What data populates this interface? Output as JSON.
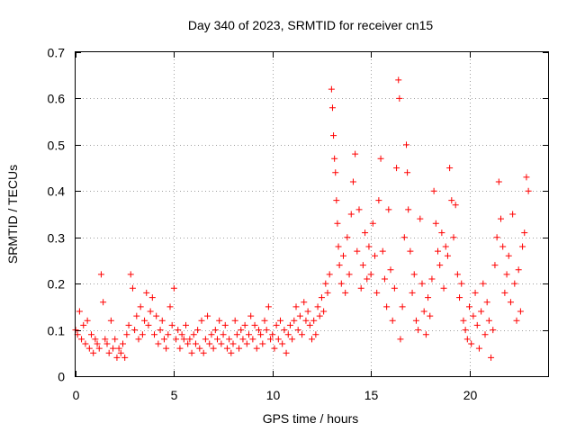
{
  "chart_data": {
    "type": "scatter",
    "title": "Day 340 of 2023, SRMTID for receiver cn15",
    "xlabel": "GPS time / hours",
    "ylabel": "SRMTID / TECUs",
    "xlim": [
      0,
      24
    ],
    "ylim": [
      0,
      0.7
    ],
    "x_ticks": [
      "0",
      "5",
      "10",
      "15",
      "20"
    ],
    "x_tick_values": [
      0,
      5,
      10,
      15,
      20
    ],
    "y_ticks": [
      "0",
      "0.1",
      "0.2",
      "0.3",
      "0.4",
      "0.5",
      "0.6",
      "0.7"
    ],
    "y_tick_values": [
      0,
      0.1,
      0.2,
      0.3,
      0.4,
      0.5,
      0.6,
      0.7
    ],
    "grid": true,
    "marker": "+",
    "color": "#ff0000",
    "series": [
      {
        "name": "SRMTID",
        "points": [
          [
            0.0,
            0.1
          ],
          [
            0.1,
            0.09
          ],
          [
            0.2,
            0.14
          ],
          [
            0.3,
            0.08
          ],
          [
            0.4,
            0.11
          ],
          [
            0.5,
            0.07
          ],
          [
            0.6,
            0.12
          ],
          [
            0.7,
            0.06
          ],
          [
            0.8,
            0.09
          ],
          [
            0.9,
            0.05
          ],
          [
            1.0,
            0.08
          ],
          [
            1.1,
            0.07
          ],
          [
            1.2,
            0.06
          ],
          [
            1.3,
            0.22
          ],
          [
            1.4,
            0.16
          ],
          [
            1.5,
            0.08
          ],
          [
            1.6,
            0.07
          ],
          [
            1.7,
            0.05
          ],
          [
            1.8,
            0.12
          ],
          [
            1.9,
            0.06
          ],
          [
            2.0,
            0.08
          ],
          [
            2.1,
            0.04
          ],
          [
            2.2,
            0.06
          ],
          [
            2.3,
            0.05
          ],
          [
            2.4,
            0.07
          ],
          [
            2.5,
            0.04
          ],
          [
            2.6,
            0.09
          ],
          [
            2.7,
            0.11
          ],
          [
            2.8,
            0.22
          ],
          [
            2.9,
            0.19
          ],
          [
            3.0,
            0.1
          ],
          [
            3.1,
            0.13
          ],
          [
            3.2,
            0.08
          ],
          [
            3.3,
            0.15
          ],
          [
            3.4,
            0.09
          ],
          [
            3.5,
            0.12
          ],
          [
            3.6,
            0.18
          ],
          [
            3.7,
            0.11
          ],
          [
            3.8,
            0.14
          ],
          [
            3.9,
            0.17
          ],
          [
            4.0,
            0.09
          ],
          [
            4.1,
            0.13
          ],
          [
            4.2,
            0.07
          ],
          [
            4.3,
            0.1
          ],
          [
            4.4,
            0.12
          ],
          [
            4.5,
            0.08
          ],
          [
            4.6,
            0.06
          ],
          [
            4.7,
            0.09
          ],
          [
            4.8,
            0.15
          ],
          [
            4.9,
            0.11
          ],
          [
            5.0,
            0.19
          ],
          [
            5.1,
            0.08
          ],
          [
            5.2,
            0.1
          ],
          [
            5.3,
            0.06
          ],
          [
            5.4,
            0.09
          ],
          [
            5.5,
            0.08
          ],
          [
            5.6,
            0.11
          ],
          [
            5.7,
            0.07
          ],
          [
            5.8,
            0.08
          ],
          [
            5.9,
            0.05
          ],
          [
            6.0,
            0.09
          ],
          [
            6.1,
            0.07
          ],
          [
            6.2,
            0.1
          ],
          [
            6.3,
            0.06
          ],
          [
            6.4,
            0.12
          ],
          [
            6.5,
            0.05
          ],
          [
            6.6,
            0.08
          ],
          [
            6.7,
            0.13
          ],
          [
            6.8,
            0.07
          ],
          [
            6.9,
            0.09
          ],
          [
            7.0,
            0.06
          ],
          [
            7.1,
            0.1
          ],
          [
            7.2,
            0.08
          ],
          [
            7.3,
            0.12
          ],
          [
            7.4,
            0.07
          ],
          [
            7.5,
            0.09
          ],
          [
            7.6,
            0.11
          ],
          [
            7.7,
            0.06
          ],
          [
            7.8,
            0.08
          ],
          [
            7.9,
            0.05
          ],
          [
            8.0,
            0.07
          ],
          [
            8.1,
            0.12
          ],
          [
            8.2,
            0.09
          ],
          [
            8.3,
            0.06
          ],
          [
            8.4,
            0.1
          ],
          [
            8.5,
            0.08
          ],
          [
            8.6,
            0.11
          ],
          [
            8.7,
            0.07
          ],
          [
            8.8,
            0.09
          ],
          [
            8.9,
            0.13
          ],
          [
            9.0,
            0.08
          ],
          [
            9.1,
            0.11
          ],
          [
            9.2,
            0.06
          ],
          [
            9.3,
            0.1
          ],
          [
            9.4,
            0.09
          ],
          [
            9.5,
            0.07
          ],
          [
            9.6,
            0.12
          ],
          [
            9.7,
            0.1
          ],
          [
            9.8,
            0.15
          ],
          [
            9.9,
            0.08
          ],
          [
            10.0,
            0.09
          ],
          [
            10.1,
            0.06
          ],
          [
            10.2,
            0.11
          ],
          [
            10.3,
            0.08
          ],
          [
            10.4,
            0.12
          ],
          [
            10.5,
            0.07
          ],
          [
            10.6,
            0.1
          ],
          [
            10.7,
            0.05
          ],
          [
            10.8,
            0.09
          ],
          [
            10.9,
            0.11
          ],
          [
            11.0,
            0.08
          ],
          [
            11.1,
            0.12
          ],
          [
            11.2,
            0.15
          ],
          [
            11.3,
            0.1
          ],
          [
            11.4,
            0.13
          ],
          [
            11.5,
            0.09
          ],
          [
            11.6,
            0.16
          ],
          [
            11.7,
            0.12
          ],
          [
            11.8,
            0.14
          ],
          [
            11.9,
            0.11
          ],
          [
            12.0,
            0.08
          ],
          [
            12.1,
            0.12
          ],
          [
            12.2,
            0.09
          ],
          [
            12.3,
            0.15
          ],
          [
            12.4,
            0.13
          ],
          [
            12.5,
            0.17
          ],
          [
            12.6,
            0.14
          ],
          [
            12.7,
            0.2
          ],
          [
            12.8,
            0.18
          ],
          [
            12.9,
            0.22
          ],
          [
            13.0,
            0.62
          ],
          [
            13.05,
            0.58
          ],
          [
            13.1,
            0.52
          ],
          [
            13.15,
            0.47
          ],
          [
            13.2,
            0.44
          ],
          [
            13.25,
            0.38
          ],
          [
            13.3,
            0.33
          ],
          [
            13.35,
            0.28
          ],
          [
            13.4,
            0.24
          ],
          [
            13.5,
            0.2
          ],
          [
            13.6,
            0.26
          ],
          [
            13.7,
            0.18
          ],
          [
            13.8,
            0.3
          ],
          [
            13.9,
            0.22
          ],
          [
            14.0,
            0.35
          ],
          [
            14.1,
            0.42
          ],
          [
            14.2,
            0.48
          ],
          [
            14.3,
            0.27
          ],
          [
            14.4,
            0.36
          ],
          [
            14.5,
            0.19
          ],
          [
            14.6,
            0.24
          ],
          [
            14.7,
            0.31
          ],
          [
            14.8,
            0.21
          ],
          [
            14.9,
            0.28
          ],
          [
            15.0,
            0.22
          ],
          [
            15.1,
            0.33
          ],
          [
            15.2,
            0.26
          ],
          [
            15.3,
            0.18
          ],
          [
            15.4,
            0.38
          ],
          [
            15.5,
            0.47
          ],
          [
            15.6,
            0.27
          ],
          [
            15.7,
            0.21
          ],
          [
            15.8,
            0.15
          ],
          [
            15.9,
            0.36
          ],
          [
            16.0,
            0.23
          ],
          [
            16.1,
            0.12
          ],
          [
            16.2,
            0.19
          ],
          [
            16.3,
            0.45
          ],
          [
            16.4,
            0.64
          ],
          [
            16.45,
            0.6
          ],
          [
            16.5,
            0.08
          ],
          [
            16.6,
            0.15
          ],
          [
            16.7,
            0.3
          ],
          [
            16.8,
            0.5
          ],
          [
            16.85,
            0.44
          ],
          [
            16.9,
            0.36
          ],
          [
            17.0,
            0.27
          ],
          [
            17.1,
            0.18
          ],
          [
            17.2,
            0.22
          ],
          [
            17.3,
            0.12
          ],
          [
            17.4,
            0.1
          ],
          [
            17.5,
            0.34
          ],
          [
            17.6,
            0.2
          ],
          [
            17.7,
            0.14
          ],
          [
            17.8,
            0.09
          ],
          [
            17.9,
            0.17
          ],
          [
            18.0,
            0.13
          ],
          [
            18.1,
            0.21
          ],
          [
            18.2,
            0.4
          ],
          [
            18.3,
            0.33
          ],
          [
            18.4,
            0.27
          ],
          [
            18.5,
            0.24
          ],
          [
            18.6,
            0.31
          ],
          [
            18.7,
            0.19
          ],
          [
            18.8,
            0.28
          ],
          [
            18.9,
            0.26
          ],
          [
            19.0,
            0.45
          ],
          [
            19.1,
            0.38
          ],
          [
            19.2,
            0.3
          ],
          [
            19.3,
            0.37
          ],
          [
            19.4,
            0.22
          ],
          [
            19.5,
            0.17
          ],
          [
            19.6,
            0.2
          ],
          [
            19.7,
            0.12
          ],
          [
            19.8,
            0.1
          ],
          [
            19.9,
            0.08
          ],
          [
            20.0,
            0.15
          ],
          [
            20.1,
            0.07
          ],
          [
            20.2,
            0.13
          ],
          [
            20.3,
            0.18
          ],
          [
            20.4,
            0.11
          ],
          [
            20.5,
            0.06
          ],
          [
            20.6,
            0.14
          ],
          [
            20.7,
            0.2
          ],
          [
            20.8,
            0.09
          ],
          [
            20.9,
            0.16
          ],
          [
            21.0,
            0.12
          ],
          [
            21.1,
            0.04
          ],
          [
            21.2,
            0.1
          ],
          [
            21.3,
            0.24
          ],
          [
            21.4,
            0.3
          ],
          [
            21.5,
            0.42
          ],
          [
            21.6,
            0.34
          ],
          [
            21.7,
            0.28
          ],
          [
            21.8,
            0.18
          ],
          [
            21.9,
            0.22
          ],
          [
            22.0,
            0.26
          ],
          [
            22.1,
            0.16
          ],
          [
            22.2,
            0.35
          ],
          [
            22.3,
            0.2
          ],
          [
            22.4,
            0.12
          ],
          [
            22.5,
            0.23
          ],
          [
            22.6,
            0.14
          ],
          [
            22.7,
            0.28
          ],
          [
            22.8,
            0.31
          ],
          [
            22.9,
            0.43
          ],
          [
            23.0,
            0.4
          ]
        ]
      }
    ]
  }
}
